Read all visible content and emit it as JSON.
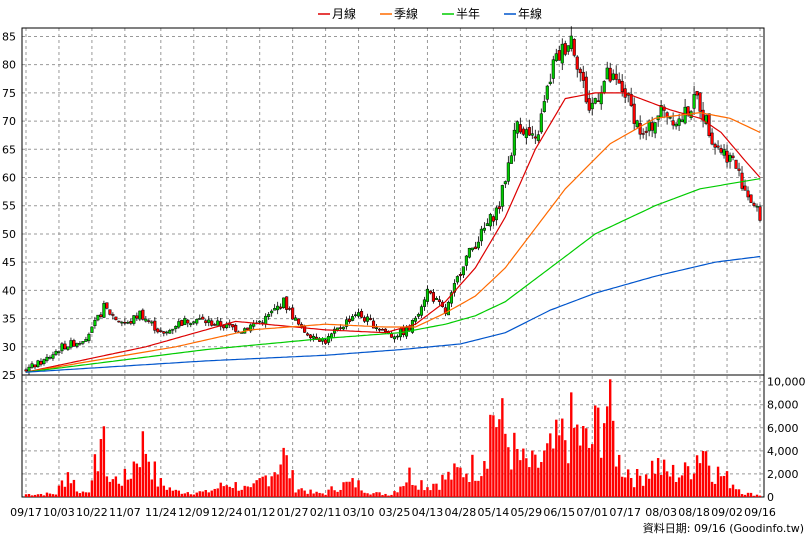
{
  "chart_data": {
    "type": "line",
    "legend": [
      {
        "name": "月線",
        "color": "#dd0000"
      },
      {
        "name": "季線",
        "color": "#ff6a00"
      },
      {
        "name": "半年",
        "color": "#00cc00"
      },
      {
        "name": "年線",
        "color": "#0055cc"
      }
    ],
    "colors": {
      "up": "#00cc00",
      "down": "#ff0000",
      "volume": "#ff0000",
      "grid": "#999999"
    },
    "x_ticks": [
      "09/17",
      "10/03",
      "10/22",
      "11/07",
      "11/24",
      "12/09",
      "12/24",
      "01/12",
      "01/27",
      "02/11",
      "03/10",
      "03/25",
      "04/13",
      "04/28",
      "05/14",
      "05/29",
      "06/15",
      "07/01",
      "07/17",
      "08/03",
      "08/18",
      "09/02",
      "09/16"
    ],
    "price_axis": {
      "ticks": [
        25,
        30,
        35,
        40,
        45,
        50,
        55,
        60,
        65,
        70,
        75,
        80,
        85
      ],
      "ylim": [
        25,
        86.5
      ]
    },
    "volume_axis": {
      "ticks": [
        "0",
        "2,000",
        "4,000",
        "6,000",
        "8,000",
        "10,000"
      ],
      "ylim": [
        0,
        10400
      ]
    },
    "price_ohlc_keypoints": [
      [
        0,
        26
      ],
      [
        6,
        27.5
      ],
      [
        12,
        30
      ],
      [
        18,
        31
      ],
      [
        22,
        33
      ],
      [
        26,
        37
      ],
      [
        30,
        35
      ],
      [
        34,
        34
      ],
      [
        38,
        36
      ],
      [
        42,
        34
      ],
      [
        46,
        32
      ],
      [
        50,
        34
      ],
      [
        56,
        35
      ],
      [
        64,
        34
      ],
      [
        72,
        33
      ],
      [
        80,
        35
      ],
      [
        86,
        38
      ],
      [
        92,
        33
      ],
      [
        100,
        31
      ],
      [
        104,
        33
      ],
      [
        110,
        36
      ],
      [
        116,
        34
      ],
      [
        122,
        32
      ],
      [
        128,
        33
      ],
      [
        134,
        40
      ],
      [
        140,
        36
      ],
      [
        146,
        45
      ],
      [
        152,
        50
      ],
      [
        158,
        55
      ],
      [
        164,
        70
      ],
      [
        170,
        66
      ],
      [
        176,
        80
      ],
      [
        182,
        85
      ],
      [
        188,
        72
      ],
      [
        194,
        78
      ],
      [
        200,
        75
      ],
      [
        206,
        67
      ],
      [
        212,
        72
      ],
      [
        218,
        70
      ],
      [
        224,
        74
      ],
      [
        230,
        66
      ],
      [
        236,
        63
      ],
      [
        240,
        58
      ],
      [
        245,
        53
      ]
    ],
    "ma_keypoints": {
      "月線": [
        [
          0,
          25.5
        ],
        [
          40,
          30
        ],
        [
          70,
          34.5
        ],
        [
          100,
          33
        ],
        [
          120,
          32.5
        ],
        [
          130,
          34
        ],
        [
          140,
          38
        ],
        [
          150,
          44
        ],
        [
          160,
          53
        ],
        [
          170,
          65
        ],
        [
          180,
          74
        ],
        [
          190,
          75
        ],
        [
          200,
          75
        ],
        [
          215,
          72
        ],
        [
          225,
          70.5
        ],
        [
          232,
          68
        ],
        [
          240,
          63
        ],
        [
          245,
          60
        ]
      ],
      "季線": [
        [
          0,
          25.5
        ],
        [
          50,
          30
        ],
        [
          75,
          33
        ],
        [
          100,
          34
        ],
        [
          120,
          33.5
        ],
        [
          130,
          33.5
        ],
        [
          140,
          36
        ],
        [
          150,
          39
        ],
        [
          160,
          44
        ],
        [
          170,
          51
        ],
        [
          180,
          58
        ],
        [
          195,
          66
        ],
        [
          210,
          70.5
        ],
        [
          225,
          71.5
        ],
        [
          235,
          70.5
        ],
        [
          245,
          68
        ]
      ],
      "半年": [
        [
          0,
          25.5
        ],
        [
          60,
          29.5
        ],
        [
          100,
          31.5
        ],
        [
          125,
          32.5
        ],
        [
          140,
          34
        ],
        [
          150,
          35.5
        ],
        [
          160,
          38
        ],
        [
          175,
          44
        ],
        [
          190,
          50
        ],
        [
          210,
          55
        ],
        [
          225,
          58
        ],
        [
          245,
          59.8
        ]
      ],
      "年線": [
        [
          0,
          25.5
        ],
        [
          60,
          27.5
        ],
        [
          100,
          28.5
        ],
        [
          125,
          29.5
        ],
        [
          145,
          30.5
        ],
        [
          160,
          32.5
        ],
        [
          175,
          36.5
        ],
        [
          190,
          39.5
        ],
        [
          210,
          42.5
        ],
        [
          230,
          45
        ],
        [
          245,
          46
        ]
      ]
    },
    "volume_keypoints": [
      [
        0,
        300
      ],
      [
        10,
        350
      ],
      [
        14,
        2700
      ],
      [
        18,
        400
      ],
      [
        22,
        1200
      ],
      [
        25,
        6700
      ],
      [
        28,
        1800
      ],
      [
        34,
        2000
      ],
      [
        38,
        5300
      ],
      [
        40,
        5600
      ],
      [
        44,
        1600
      ],
      [
        50,
        600
      ],
      [
        60,
        500
      ],
      [
        68,
        1500
      ],
      [
        75,
        700
      ],
      [
        82,
        2800
      ],
      [
        86,
        4400
      ],
      [
        90,
        1100
      ],
      [
        96,
        400
      ],
      [
        100,
        400
      ],
      [
        104,
        1200
      ],
      [
        110,
        1500
      ],
      [
        116,
        400
      ],
      [
        122,
        300
      ],
      [
        128,
        2400
      ],
      [
        134,
        1200
      ],
      [
        140,
        2000
      ],
      [
        146,
        2900
      ],
      [
        152,
        3500
      ],
      [
        156,
        9500
      ],
      [
        162,
        5200
      ],
      [
        166,
        3600
      ],
      [
        170,
        3200
      ],
      [
        176,
        5000
      ],
      [
        182,
        7400
      ],
      [
        188,
        5300
      ],
      [
        194,
        10200
      ],
      [
        198,
        3800
      ],
      [
        204,
        2000
      ],
      [
        210,
        3600
      ],
      [
        214,
        2500
      ],
      [
        220,
        2600
      ],
      [
        226,
        5600
      ],
      [
        230,
        2800
      ],
      [
        236,
        1500
      ],
      [
        240,
        400
      ],
      [
        245,
        200
      ]
    ],
    "footer": "資料日期: 09/16 (Goodinfo.tw)"
  }
}
